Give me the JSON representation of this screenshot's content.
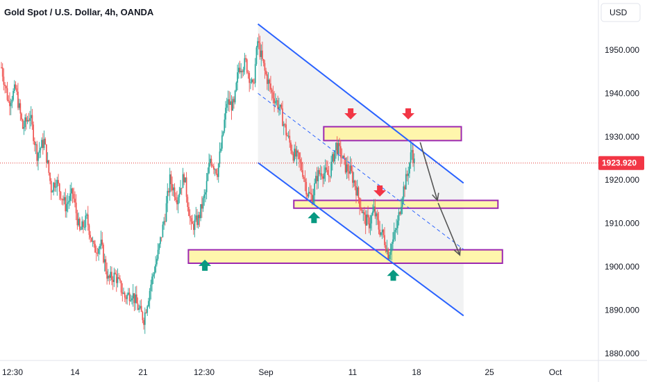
{
  "chart_data": {
    "type": "candlestick",
    "title": "Gold Spot / U.S. Dollar, 4h, OANDA",
    "currency": "USD",
    "current_price": "1923.920",
    "ylim": [
      1876,
      1962
    ],
    "y_ticks": [
      "1880.000",
      "1890.000",
      "1900.000",
      "1910.000",
      "1920.000",
      "1930.000",
      "1940.000",
      "1950.000"
    ],
    "x_ticks": [
      "12:30",
      "14",
      "21",
      "12:30",
      "Sep",
      "11",
      "18",
      "25",
      "Oct"
    ],
    "grid": false,
    "colors": {
      "up": "#26a69a",
      "down": "#ef5350",
      "price_line": "#e53935",
      "channel": "#2962ff",
      "zone_fill": "#fff59d",
      "zone_border": "#9c27b0",
      "arrow_up": "#089981",
      "arrow_down": "#f23645"
    },
    "anchors": [
      [
        0,
        1946
      ],
      [
        6,
        1938
      ],
      [
        12,
        1941
      ],
      [
        18,
        1932
      ],
      [
        24,
        1935
      ],
      [
        30,
        1926
      ],
      [
        36,
        1929
      ],
      [
        42,
        1918
      ],
      [
        46,
        1920
      ],
      [
        54,
        1914
      ],
      [
        60,
        1917
      ],
      [
        66,
        1908
      ],
      [
        72,
        1911
      ],
      [
        78,
        1904
      ],
      [
        84,
        1905
      ],
      [
        90,
        1897
      ],
      [
        96,
        1898
      ],
      [
        104,
        1893
      ],
      [
        110,
        1894
      ],
      [
        116,
        1890
      ],
      [
        120,
        1888
      ],
      [
        126,
        1896
      ],
      [
        132,
        1903
      ],
      [
        138,
        1912
      ],
      [
        142,
        1920
      ],
      [
        148,
        1916
      ],
      [
        154,
        1921
      ],
      [
        160,
        1909
      ],
      [
        166,
        1911
      ],
      [
        172,
        1917
      ],
      [
        176,
        1925
      ],
      [
        182,
        1922
      ],
      [
        186,
        1929
      ],
      [
        190,
        1938
      ],
      [
        196,
        1937
      ],
      [
        200,
        1946
      ],
      [
        206,
        1947
      ],
      [
        212,
        1941
      ],
      [
        216,
        1952
      ],
      [
        222,
        1945
      ],
      [
        228,
        1940
      ],
      [
        234,
        1937
      ],
      [
        240,
        1931
      ],
      [
        246,
        1926
      ],
      [
        250,
        1925
      ],
      [
        254,
        1922
      ],
      [
        258,
        1917
      ],
      [
        262,
        1916
      ],
      [
        266,
        1921
      ],
      [
        270,
        1922
      ],
      [
        276,
        1921
      ],
      [
        282,
        1928
      ],
      [
        286,
        1926
      ],
      [
        290,
        1923
      ],
      [
        294,
        1922
      ],
      [
        298,
        1919
      ],
      [
        302,
        1915
      ],
      [
        306,
        1911
      ],
      [
        310,
        1910
      ],
      [
        314,
        1913
      ],
      [
        318,
        1909
      ],
      [
        322,
        1907
      ],
      [
        326,
        1903
      ],
      [
        330,
        1906
      ],
      [
        334,
        1910
      ],
      [
        338,
        1917
      ],
      [
        342,
        1921
      ],
      [
        346,
        1927
      ],
      [
        348,
        1924
      ]
    ],
    "channel": {
      "upper": [
        [
          34.5,
          1956
        ],
        [
          62,
          1919.3
        ]
      ],
      "lower": [
        [
          34.5,
          1924
        ],
        [
          62,
          1888.7
        ]
      ],
      "mid": [
        [
          34.5,
          1940
        ],
        [
          62,
          1904
        ]
      ]
    },
    "zones": [
      {
        "x": [
          43.3,
          61.7
        ],
        "y": [
          1929.1,
          1932.3
        ]
      },
      {
        "x": [
          39.3,
          66.6
        ],
        "y": [
          1913.5,
          1915.3
        ]
      },
      {
        "x": [
          25.2,
          67.2
        ],
        "y": [
          1900.8,
          1903.9
        ]
      }
    ],
    "projections": [
      [
        [
          56.2,
          1928.7
        ],
        [
          58.5,
          1915.3
        ]
      ],
      [
        [
          58.6,
          1914.7
        ],
        [
          61.5,
          1902.7
        ]
      ]
    ],
    "markers": [
      {
        "dir": "down",
        "at": [
          46.9,
          1934.3
        ]
      },
      {
        "dir": "down",
        "at": [
          54.6,
          1934.3
        ]
      },
      {
        "dir": "down",
        "at": [
          50.8,
          1916.5
        ]
      },
      {
        "dir": "up",
        "at": [
          42.0,
          1912.3
        ]
      },
      {
        "dir": "up",
        "at": [
          27.4,
          1901.3
        ]
      },
      {
        "dir": "up",
        "at": [
          52.6,
          1899.0
        ]
      }
    ]
  }
}
